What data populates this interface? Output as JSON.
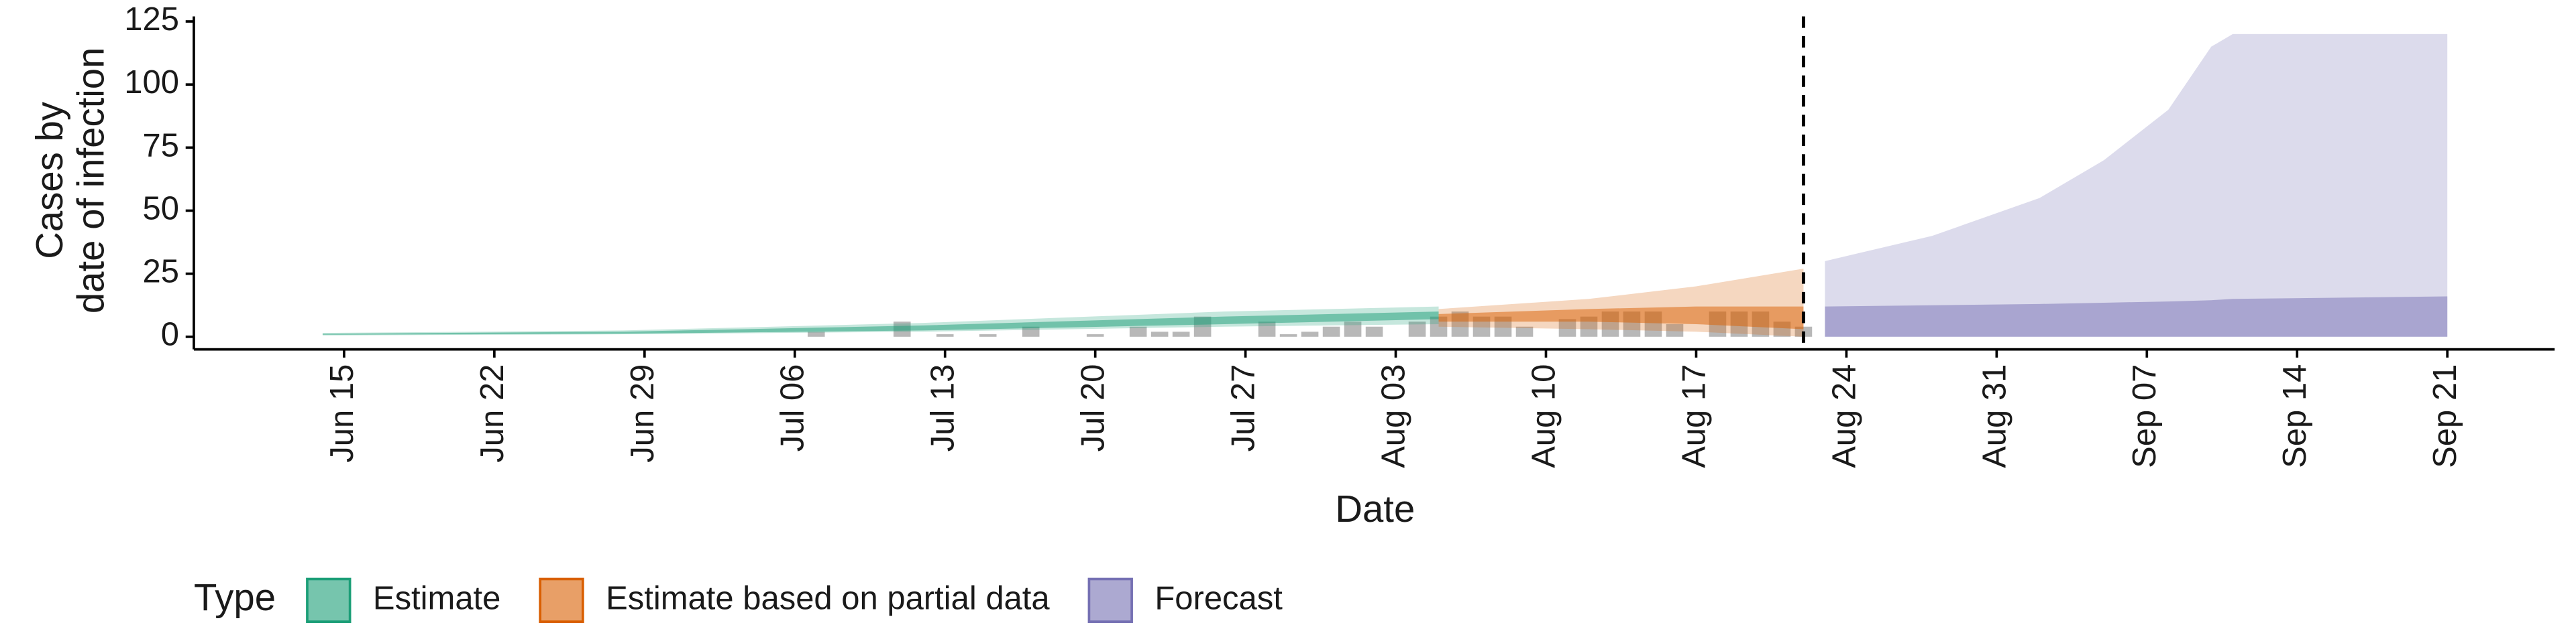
{
  "chart_data": {
    "type": "area",
    "y_label": [
      "Cases by",
      "date of infection"
    ],
    "x_label": "Date",
    "legend_title": "Type",
    "xlim": [
      "Jun 08",
      "Sep 26"
    ],
    "xticks": [
      "Jun 15",
      "Jun 22",
      "Jun 29",
      "Jul 06",
      "Jul 13",
      "Jul 20",
      "Jul 27",
      "Aug 03",
      "Aug 10",
      "Aug 17",
      "Aug 24",
      "Aug 31",
      "Sep 07",
      "Sep 14",
      "Sep 21"
    ],
    "ylim": [
      -5,
      127
    ],
    "yticks": [
      0,
      25,
      50,
      75,
      100,
      125
    ],
    "vline": "Aug 22",
    "series": [
      {
        "name": "Estimate",
        "color": "#1b9e77",
        "x": [
          "Jun 14",
          "Jun 28",
          "Jul 12",
          "Jul 26",
          "Aug 05"
        ],
        "lower": [
          0.5,
          1,
          2,
          4,
          5
        ],
        "upper": [
          1.5,
          2.5,
          5.5,
          10,
          12
        ],
        "inner_lower": [
          0.8,
          1.2,
          2.5,
          5,
          7
        ],
        "inner_upper": [
          1.2,
          2,
          4.5,
          8,
          10
        ]
      },
      {
        "name": "Estimate based on partial data",
        "color": "#d95f02",
        "x": [
          "Aug 05",
          "Aug 12",
          "Aug 17",
          "Aug 22"
        ],
        "lower": [
          4,
          3,
          2,
          0
        ],
        "upper": [
          11,
          15,
          20,
          27
        ],
        "inner_lower": [
          6,
          6,
          5,
          3
        ],
        "inner_upper": [
          9,
          11,
          12,
          12
        ]
      },
      {
        "name": "Forecast",
        "color": "#7570b3",
        "x": [
          "Aug 23",
          "Aug 28",
          "Sep 02",
          "Sep 05",
          "Sep 08",
          "Sep 10",
          "Sep 11",
          "Sep 21"
        ],
        "lower": [
          0,
          0,
          0,
          0,
          0,
          0,
          0,
          0
        ],
        "upper": [
          30,
          40,
          55,
          70,
          90,
          115,
          120,
          120
        ],
        "inner_lower": [
          0,
          0,
          0,
          0,
          0,
          0,
          0,
          0
        ],
        "inner_upper": [
          12,
          12.5,
          13,
          13.5,
          14,
          14.5,
          15,
          16
        ]
      }
    ],
    "bars": {
      "color": "#a0a0a0",
      "x": [
        "Jul 07",
        "Jul 11",
        "Jul 13",
        "Jul 15",
        "Jul 17",
        "Jul 20",
        "Jul 22",
        "Jul 23",
        "Jul 24",
        "Jul 25",
        "Jul 28",
        "Jul 29",
        "Jul 30",
        "Jul 31",
        "Aug 01",
        "Aug 02",
        "Aug 04",
        "Aug 05",
        "Aug 06",
        "Aug 07",
        "Aug 08",
        "Aug 09",
        "Aug 11",
        "Aug 12",
        "Aug 13",
        "Aug 14",
        "Aug 15",
        "Aug 16",
        "Aug 18",
        "Aug 19",
        "Aug 20",
        "Aug 21",
        "Aug 22"
      ],
      "values": [
        2,
        6,
        1,
        1,
        4,
        1,
        4,
        2,
        2,
        8,
        6,
        1,
        2,
        4,
        6,
        4,
        6,
        8,
        10,
        8,
        8,
        4,
        7,
        8,
        10,
        10,
        10,
        5,
        10,
        10,
        10,
        6,
        4
      ]
    }
  }
}
